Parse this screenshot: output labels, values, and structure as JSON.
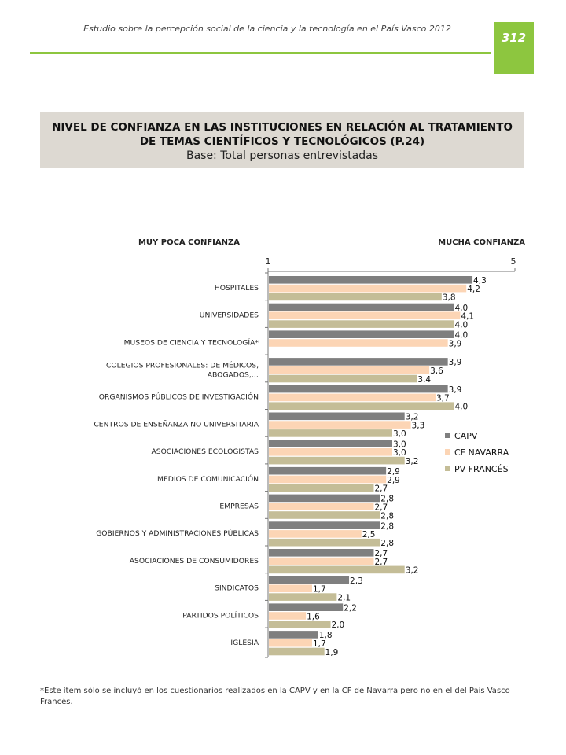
{
  "header": {
    "report_title": "Estudio sobre la percepción social de la ciencia y la tecnología en el País Vasco 2012",
    "page_number": "312"
  },
  "title_block": {
    "line1": "NIVEL DE CONFIANZA EN LAS INSTITUCIONES EN RELACIÓN AL TRATAMIENTO",
    "line2": "DE TEMAS CIENTÍFICOS Y TECNOLÓGICOS (P.24)",
    "base": "Base: Total personas entrevistadas"
  },
  "chart_data": {
    "type": "bar",
    "orientation": "horizontal",
    "left_label": "MUY POCA CONFIANZA",
    "right_label": "MUCHA CONFIANZA",
    "xlim": [
      1,
      5
    ],
    "tick_min_label": "1",
    "tick_max_label": "5",
    "legend_position": "right",
    "categories": [
      "HOSPITALES",
      "UNIVERSIDADES",
      "MUSEOS DE CIENCIA Y TECNOLOGÍA*",
      "COLEGIOS  PROFESIONALES:  DE MÉDICOS,|ABOGADOS,…",
      "ORGANISMOS PÚBLICOS DE INVESTIGACIÓN",
      "CENTROS DE ENSEÑANZA NO UNIVERSITARIA",
      "ASOCIACIONES ECOLOGISTAS",
      "MEDIOS DE COMUNICACIÓN",
      "EMPRESAS",
      "GOBIERNOS Y ADMINISTRACIONES PÚBLICAS",
      "ASOCIACIONES DE CONSUMIDORES",
      "SINDICATOS",
      "PARTIDOS POLÍTICOS",
      "IGLESIA"
    ],
    "series": [
      {
        "name": "CAPV",
        "color": "#7f7f7f",
        "values": [
          4.3,
          4.0,
          4.0,
          3.9,
          3.9,
          3.2,
          3.0,
          2.9,
          2.8,
          2.8,
          2.7,
          2.3,
          2.2,
          1.8
        ],
        "labels": [
          "4,3",
          "4,0",
          "4,0",
          "3,9",
          "3,9",
          "3,2",
          "3,0",
          "2,9",
          "2,8",
          "2,8",
          "2,7",
          "2,3",
          "2,2",
          "1,8"
        ]
      },
      {
        "name": "CF NAVARRA",
        "color": "#fcd5b5",
        "values": [
          4.2,
          4.1,
          3.9,
          3.6,
          3.7,
          3.3,
          3.0,
          2.9,
          2.7,
          2.5,
          2.7,
          1.7,
          1.6,
          1.7
        ],
        "labels": [
          "4,2",
          "4,1",
          "3,9",
          "3,6",
          "3,7",
          "3,3",
          "3,0",
          "2,9",
          "2,7",
          "2,5",
          "2,7",
          "1,7",
          "1,6",
          "1,7"
        ]
      },
      {
        "name": "PV FRANCÉS",
        "color": "#c4bd97",
        "values": [
          3.8,
          4.0,
          null,
          3.4,
          4.0,
          3.0,
          3.2,
          2.7,
          2.8,
          2.8,
          3.2,
          2.1,
          2.0,
          1.9
        ],
        "labels": [
          "3,8",
          "4,0",
          "",
          "3,4",
          "4,0",
          "3,0",
          "3,2",
          "2,7",
          "2,8",
          "2,8",
          "3,2",
          "2,1",
          "2,0",
          "1,9"
        ]
      }
    ]
  },
  "footnote": "*Este ítem sólo se incluyó en los cuestionarios realizados en la CAPV y en la CF de Navarra pero no en el del País Vasco Francés."
}
